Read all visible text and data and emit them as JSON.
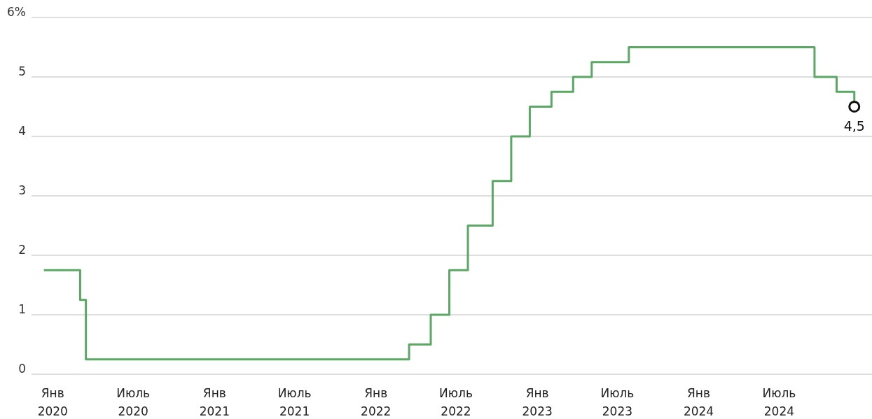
{
  "chart_data": {
    "type": "step",
    "x": [
      "2019-12-12",
      "2020-03-03",
      "2020-03-16",
      "2022-03-17",
      "2022-05-05",
      "2022-06-16",
      "2022-07-28",
      "2022-09-22",
      "2022-11-03",
      "2022-12-15",
      "2023-02-02",
      "2023-03-23",
      "2023-05-04",
      "2023-07-27",
      "2024-09-19",
      "2024-11-08",
      "2024-12-18"
    ],
    "series": [
      {
        "color": "#5aa864",
        "values": [
          1.75,
          1.25,
          0.25,
          0.5,
          1.0,
          1.75,
          2.5,
          3.25,
          4.0,
          4.5,
          4.75,
          5.0,
          5.25,
          5.5,
          5.0,
          4.75,
          4.5
        ]
      }
    ],
    "xlim": [
      "2019-11-14",
      "2025-01-27"
    ],
    "xticks": [
      {
        "value": "2020-01-01",
        "label": "Янв 2020"
      },
      {
        "value": "2020-07-01",
        "label": "Июль 2020"
      },
      {
        "value": "2021-01-01",
        "label": "Янв 2021"
      },
      {
        "value": "2021-07-01",
        "label": "Июль 2021"
      },
      {
        "value": "2022-01-01",
        "label": "Янв 2022"
      },
      {
        "value": "2022-07-01",
        "label": "Июль 2022"
      },
      {
        "value": "2023-01-01",
        "label": "Янв 2023"
      },
      {
        "value": "2023-07-01",
        "label": "Июль 2023"
      },
      {
        "value": "2024-01-01",
        "label": "Янв 2024"
      },
      {
        "value": "2024-07-01",
        "label": "Июль 2024"
      }
    ],
    "ylim": [
      0,
      6
    ],
    "yticks": [
      0,
      1,
      2,
      3,
      4,
      5,
      {
        "value": 6,
        "label": "6%"
      }
    ],
    "grid": "y",
    "marker": "none",
    "line_style": "solid",
    "annotations": [
      {
        "text": "4,5",
        "x": "2024-12-18",
        "y": 4.5
      }
    ]
  }
}
